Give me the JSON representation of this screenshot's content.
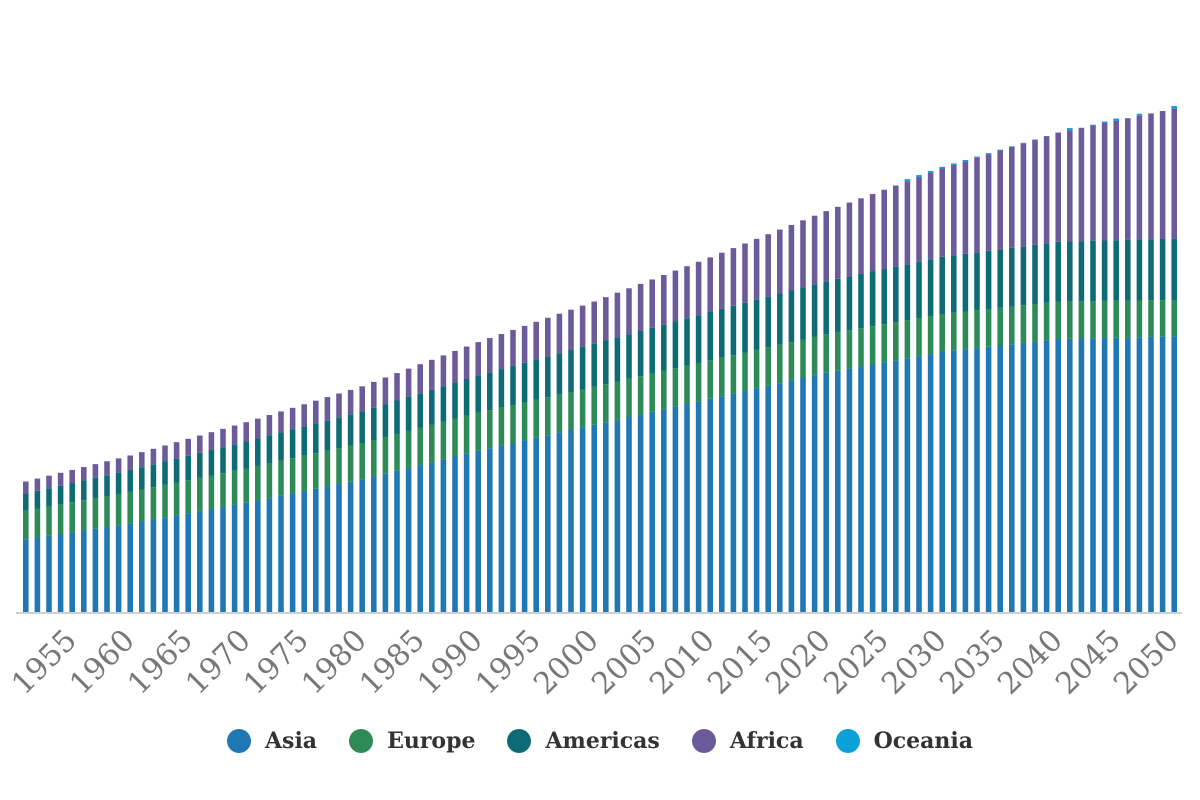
{
  "chart_data": {
    "type": "bar",
    "stacked": true,
    "title": "",
    "xlabel": "",
    "ylabel": "",
    "y_unit": "billions (approx.)",
    "ylim": [
      0,
      11
    ],
    "grid": false,
    "legend_position": "bottom",
    "x_tick_labels": [
      "1955",
      "1960",
      "1965",
      "1970",
      "1975",
      "1980",
      "1985",
      "1990",
      "1995",
      "2000",
      "2005",
      "2010",
      "2015",
      "2020",
      "2025",
      "2030",
      "2035",
      "2040",
      "2045",
      "2050"
    ],
    "x_start": 1951,
    "x_end": 2050,
    "series": [
      {
        "name": "Asia",
        "color": "#1f77b4",
        "anchors_x": [
          1951,
          1960,
          1970,
          1980,
          1990,
          2000,
          2010,
          2020,
          2030,
          2040,
          2050
        ],
        "anchors_y": [
          1.4,
          1.7,
          2.1,
          2.55,
          3.1,
          3.6,
          4.1,
          4.6,
          5.0,
          5.25,
          5.3
        ]
      },
      {
        "name": "Europe",
        "color": "#2e8b57",
        "anchors_x": [
          1951,
          1960,
          1970,
          1980,
          1990,
          2000,
          2010,
          2020,
          2030,
          2040,
          2050
        ],
        "anchors_y": [
          0.55,
          0.61,
          0.66,
          0.7,
          0.73,
          0.73,
          0.74,
          0.74,
          0.73,
          0.72,
          0.7
        ]
      },
      {
        "name": "Americas",
        "color": "#0e6b75",
        "anchors_x": [
          1951,
          1960,
          1970,
          1980,
          1990,
          2000,
          2010,
          2020,
          2030,
          2040,
          2050
        ],
        "anchors_y": [
          0.33,
          0.42,
          0.52,
          0.61,
          0.72,
          0.83,
          0.93,
          1.02,
          1.1,
          1.15,
          1.18
        ]
      },
      {
        "name": "Africa",
        "color": "#6b5b9a",
        "anchors_x": [
          1951,
          1960,
          1970,
          1980,
          1990,
          2000,
          2010,
          2020,
          2030,
          2040,
          2050
        ],
        "anchors_y": [
          0.23,
          0.28,
          0.37,
          0.48,
          0.64,
          0.81,
          1.05,
          1.35,
          1.7,
          2.1,
          2.5
        ]
      },
      {
        "name": "Oceania",
        "color": "#0aa0d8",
        "anchors_x": [
          1951,
          2020,
          2026,
          2027,
          2040,
          2041,
          2042,
          2045,
          2046,
          2047,
          2048,
          2049,
          2050
        ],
        "anchors_y": [
          0.0,
          0.0,
          0.0,
          0.04,
          0.0,
          0.04,
          0.0,
          0.04,
          0.0,
          0.04,
          0.0,
          0.0,
          0.05
        ]
      }
    ]
  }
}
